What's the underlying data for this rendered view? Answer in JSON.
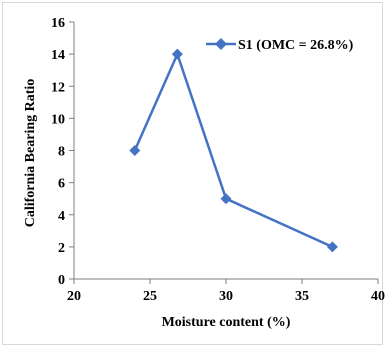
{
  "chart_data": {
    "type": "line",
    "xlabel": "Moisture content (%)",
    "ylabel": "California Bearing Ratio",
    "xlim": [
      20,
      40
    ],
    "ylim": [
      0,
      16
    ],
    "xticks": [
      20,
      25,
      30,
      35,
      40
    ],
    "yticks": [
      0,
      2,
      4,
      6,
      8,
      10,
      12,
      14,
      16
    ],
    "grid": false,
    "legend_position": "top-right",
    "marker": "diamond",
    "series": [
      {
        "name": "S1 (OMC = 26.8%)",
        "color": "#4472C4",
        "x": [
          24,
          26.8,
          30,
          37
        ],
        "y": [
          8,
          14,
          5,
          2
        ]
      }
    ]
  }
}
